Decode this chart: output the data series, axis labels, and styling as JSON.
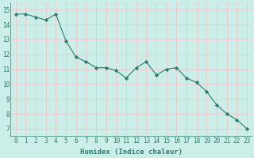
{
  "x": [
    0,
    1,
    2,
    3,
    4,
    5,
    6,
    7,
    8,
    9,
    10,
    11,
    12,
    13,
    14,
    15,
    16,
    17,
    18,
    19,
    20,
    21,
    22,
    23
  ],
  "y": [
    14.7,
    14.7,
    14.5,
    14.3,
    14.7,
    12.9,
    11.8,
    11.5,
    11.1,
    11.1,
    10.9,
    10.4,
    11.1,
    11.5,
    10.6,
    11.0,
    11.1,
    10.4,
    10.1,
    9.5,
    8.6,
    8.0,
    7.6,
    7.0
  ],
  "xlabel": "Humidex (Indice chaleur)",
  "line_color": "#2e7d6e",
  "marker": "D",
  "marker_size": 2.2,
  "bg_color": "#cceee8",
  "grid_color": "#f0c8c8",
  "xlim": [
    -0.5,
    23.5
  ],
  "ylim": [
    6.5,
    15.5
  ],
  "yticks": [
    7,
    8,
    9,
    10,
    11,
    12,
    13,
    14,
    15
  ],
  "xtick_labels": [
    "0",
    "1",
    "2",
    "3",
    "4",
    "5",
    "6",
    "7",
    "8",
    "9",
    "10",
    "11",
    "12",
    "13",
    "14",
    "15",
    "16",
    "17",
    "18",
    "19",
    "20",
    "21",
    "22",
    "23"
  ],
  "xlabel_fontsize": 6.5,
  "tick_fontsize": 5.5
}
